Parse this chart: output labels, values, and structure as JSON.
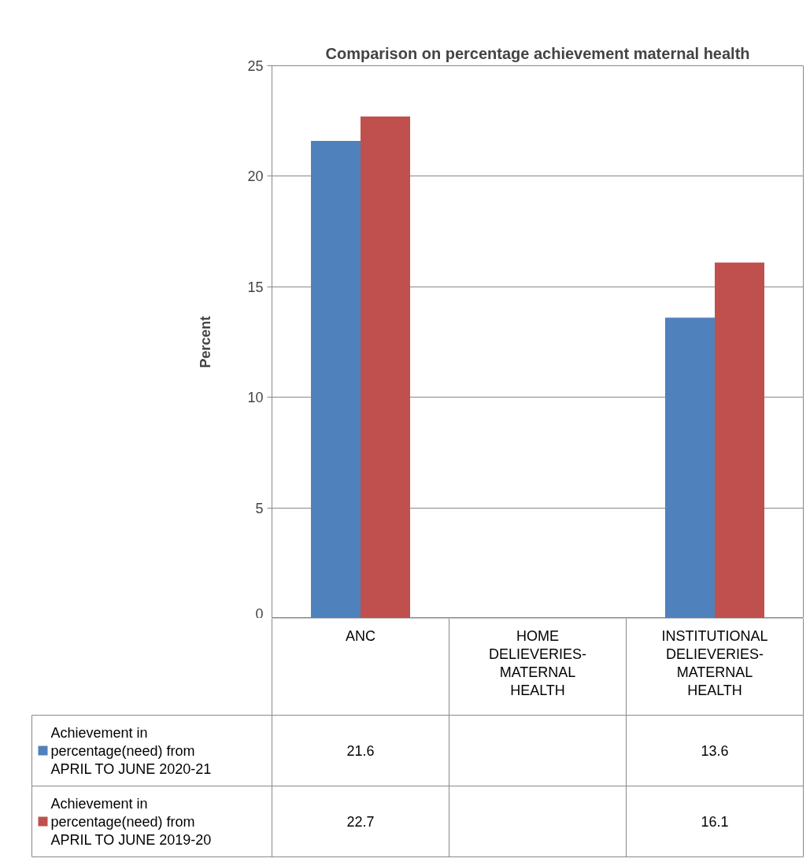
{
  "chart_data": {
    "type": "bar",
    "title": "Comparison on percentage achievement maternal health",
    "ylabel": "Percent",
    "categories": [
      "ANC",
      "HOME DELIEVERIES-MATERNAL HEALTH",
      "INSTITUTIONAL DELIEVERIES-MATERNAL HEALTH"
    ],
    "series": [
      {
        "name": "Achievement in percentage(need) from APRIL TO JUNE 2020-21",
        "color": "#4f81bd",
        "values": [
          21.6,
          null,
          13.6
        ]
      },
      {
        "name": "Achievement in percentage(need) from APRIL TO JUNE 2019-20",
        "color": "#c0504d",
        "values": [
          22.7,
          null,
          16.1
        ]
      }
    ],
    "ylim": [
      0,
      25
    ],
    "yticks": [
      0,
      5,
      10,
      15,
      20,
      25
    ],
    "grid": "y",
    "legend": "bottom",
    "data_labels": true
  }
}
